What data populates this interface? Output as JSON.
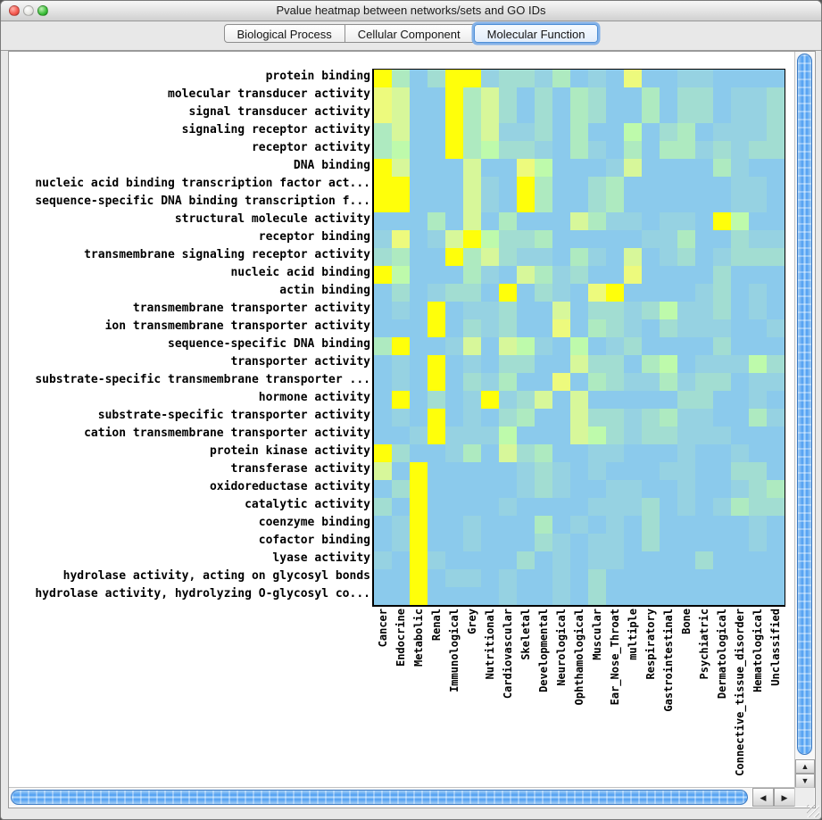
{
  "window": {
    "title": "Pvalue heatmap between networks/sets and GO IDs",
    "buttons": [
      "close",
      "minimize",
      "zoom"
    ]
  },
  "tabs": [
    {
      "label": "Biological Process",
      "selected": false
    },
    {
      "label": "Cellular Component",
      "selected": false
    },
    {
      "label": "Molecular Function",
      "selected": true
    }
  ],
  "scroll": {
    "up": "▲",
    "down": "▼",
    "left": "◀",
    "right": "▶"
  },
  "chart_data": {
    "type": "heatmap",
    "title": "",
    "xlabel": "",
    "ylabel": "",
    "grid": false,
    "legend": "none",
    "value_scale": "palette index 0-7 encodes enrichment p-value intensity: 0 = low (light blue) to 7 = high (bright yellow)",
    "palette": [
      "#8BCAEC",
      "#96D2E2",
      "#A2DDD2",
      "#AEEAC0",
      "#BEFAAB",
      "#D7F79A",
      "#EDFA7D",
      "#FFFF0A"
    ],
    "x_categories": [
      "Cancer",
      "Endocrine",
      "Metabolic",
      "Renal",
      "Immunological",
      "Grey",
      "Nutritional",
      "Cardiovascular",
      "Skeletal",
      "Developmental",
      "Neurological",
      "Ophthamological",
      "Muscular",
      "Ear_Nose_Throat",
      "multiple",
      "Respiratory",
      "Gastrointestinal",
      "Bone",
      "Psychiatric",
      "Dermatological",
      "Connective_tissue_disorder",
      "Hematological",
      "Unclassified"
    ],
    "y_categories": [
      "protein binding",
      "molecular transducer activity",
      "signal transducer activity",
      "signaling receptor activity",
      "receptor activity",
      "DNA binding",
      "nucleic acid binding transcription factor act...",
      "sequence-specific DNA binding transcription f...",
      "structural molecule activity",
      "receptor binding",
      "transmembrane signaling receptor activity",
      "nucleic acid binding",
      "actin binding",
      "transmembrane transporter activity",
      "ion transmembrane transporter activity",
      "sequence-specific DNA binding",
      "transporter activity",
      "substrate-specific transmembrane transporter ...",
      "hormone activity",
      "substrate-specific transporter activity",
      "cation transmembrane transporter activity",
      "protein kinase activity",
      "transferase activity",
      "oxidoreductase activity",
      "catalytic activity",
      "coenzyme binding",
      "cofactor binding",
      "lyase activity",
      "hydrolase activity, acting on glycosyl bonds",
      "hydrolase activity, hydrolyzing O-glycosyl co..."
    ],
    "values": [
      [
        7,
        3,
        0,
        2,
        7,
        7,
        1,
        2,
        2,
        1,
        3,
        0,
        1,
        0,
        6,
        0,
        0,
        1,
        1,
        0,
        0,
        0,
        0
      ],
      [
        6,
        5,
        0,
        0,
        7,
        3,
        5,
        2,
        0,
        2,
        0,
        3,
        2,
        0,
        0,
        3,
        0,
        2,
        2,
        0,
        1,
        1,
        2
      ],
      [
        6,
        5,
        0,
        0,
        7,
        3,
        5,
        2,
        0,
        2,
        0,
        3,
        2,
        0,
        0,
        3,
        0,
        2,
        2,
        0,
        1,
        1,
        2
      ],
      [
        3,
        5,
        0,
        0,
        7,
        3,
        5,
        1,
        1,
        2,
        0,
        3,
        0,
        0,
        4,
        0,
        2,
        3,
        0,
        1,
        1,
        1,
        2
      ],
      [
        3,
        4,
        0,
        0,
        7,
        3,
        4,
        2,
        2,
        1,
        0,
        3,
        1,
        0,
        3,
        0,
        3,
        3,
        1,
        2,
        1,
        2,
        2
      ],
      [
        7,
        5,
        0,
        0,
        0,
        5,
        0,
        0,
        6,
        4,
        0,
        0,
        0,
        1,
        5,
        0,
        0,
        0,
        0,
        3,
        1,
        0,
        0
      ],
      [
        7,
        7,
        0,
        0,
        0,
        5,
        1,
        0,
        7,
        3,
        0,
        0,
        2,
        3,
        0,
        0,
        0,
        0,
        0,
        0,
        1,
        1,
        0
      ],
      [
        7,
        7,
        0,
        0,
        0,
        5,
        1,
        0,
        7,
        3,
        0,
        0,
        2,
        3,
        0,
        0,
        0,
        0,
        0,
        0,
        1,
        1,
        0
      ],
      [
        0,
        0,
        0,
        3,
        0,
        5,
        0,
        3,
        0,
        0,
        0,
        5,
        3,
        1,
        1,
        0,
        1,
        1,
        0,
        7,
        4,
        0,
        0
      ],
      [
        1,
        6,
        0,
        1,
        5,
        7,
        4,
        2,
        2,
        3,
        0,
        0,
        0,
        0,
        0,
        1,
        1,
        3,
        0,
        0,
        2,
        1,
        1
      ],
      [
        2,
        3,
        0,
        0,
        7,
        3,
        5,
        2,
        1,
        1,
        0,
        3,
        1,
        0,
        5,
        0,
        1,
        2,
        0,
        1,
        2,
        2,
        2
      ],
      [
        7,
        4,
        0,
        0,
        0,
        3,
        1,
        0,
        5,
        3,
        1,
        2,
        0,
        0,
        6,
        0,
        0,
        0,
        0,
        2,
        0,
        0,
        0
      ],
      [
        0,
        2,
        0,
        1,
        2,
        2,
        0,
        7,
        0,
        2,
        1,
        0,
        6,
        7,
        0,
        0,
        0,
        0,
        1,
        2,
        0,
        1,
        0
      ],
      [
        0,
        1,
        0,
        7,
        0,
        1,
        1,
        2,
        0,
        0,
        5,
        0,
        2,
        2,
        1,
        2,
        4,
        1,
        1,
        2,
        0,
        1,
        0
      ],
      [
        0,
        0,
        0,
        7,
        0,
        2,
        1,
        2,
        0,
        0,
        6,
        0,
        3,
        2,
        1,
        0,
        2,
        1,
        1,
        1,
        0,
        0,
        1
      ],
      [
        3,
        7,
        0,
        0,
        1,
        5,
        0,
        5,
        4,
        1,
        0,
        4,
        0,
        1,
        2,
        0,
        0,
        0,
        0,
        2,
        0,
        0,
        0
      ],
      [
        0,
        1,
        0,
        7,
        0,
        1,
        0,
        2,
        2,
        0,
        0,
        5,
        2,
        2,
        0,
        3,
        4,
        0,
        1,
        1,
        1,
        4,
        2
      ],
      [
        0,
        1,
        0,
        7,
        0,
        2,
        1,
        3,
        0,
        0,
        6,
        0,
        3,
        2,
        1,
        1,
        3,
        1,
        2,
        2,
        0,
        1,
        1
      ],
      [
        0,
        7,
        0,
        2,
        0,
        1,
        7,
        1,
        2,
        5,
        0,
        5,
        0,
        0,
        0,
        0,
        0,
        2,
        2,
        0,
        0,
        1,
        0
      ],
      [
        0,
        1,
        0,
        7,
        0,
        1,
        0,
        2,
        3,
        0,
        0,
        5,
        2,
        2,
        1,
        2,
        3,
        1,
        1,
        0,
        0,
        3,
        1
      ],
      [
        0,
        0,
        1,
        7,
        1,
        1,
        1,
        4,
        0,
        0,
        0,
        5,
        4,
        2,
        1,
        2,
        2,
        1,
        1,
        1,
        0,
        0,
        0
      ],
      [
        7,
        2,
        0,
        0,
        1,
        3,
        0,
        5,
        2,
        3,
        0,
        0,
        1,
        1,
        0,
        0,
        0,
        1,
        0,
        0,
        1,
        0,
        0
      ],
      [
        5,
        0,
        7,
        0,
        0,
        0,
        0,
        0,
        1,
        2,
        1,
        0,
        1,
        0,
        0,
        0,
        1,
        1,
        0,
        0,
        2,
        2,
        0
      ],
      [
        0,
        2,
        7,
        0,
        0,
        0,
        0,
        0,
        1,
        2,
        1,
        0,
        0,
        1,
        1,
        0,
        0,
        1,
        0,
        0,
        1,
        2,
        3
      ],
      [
        2,
        0,
        7,
        0,
        0,
        0,
        0,
        1,
        0,
        0,
        0,
        0,
        1,
        1,
        1,
        2,
        0,
        1,
        0,
        1,
        3,
        2,
        2
      ],
      [
        0,
        1,
        7,
        0,
        0,
        1,
        0,
        0,
        0,
        3,
        0,
        1,
        0,
        1,
        0,
        2,
        0,
        0,
        0,
        0,
        0,
        1,
        0
      ],
      [
        0,
        1,
        7,
        0,
        0,
        1,
        0,
        0,
        0,
        2,
        1,
        0,
        1,
        1,
        0,
        2,
        0,
        0,
        0,
        0,
        0,
        1,
        0
      ],
      [
        1,
        0,
        7,
        1,
        0,
        0,
        0,
        0,
        2,
        0,
        1,
        0,
        1,
        1,
        0,
        0,
        0,
        0,
        2,
        0,
        0,
        0,
        0
      ],
      [
        0,
        0,
        7,
        0,
        1,
        1,
        0,
        1,
        0,
        0,
        1,
        0,
        2,
        0,
        0,
        0,
        0,
        0,
        0,
        0,
        0,
        0,
        0
      ],
      [
        0,
        0,
        7,
        0,
        0,
        0,
        0,
        1,
        0,
        0,
        1,
        0,
        2,
        0,
        0,
        0,
        0,
        0,
        0,
        0,
        0,
        0,
        0
      ]
    ]
  }
}
